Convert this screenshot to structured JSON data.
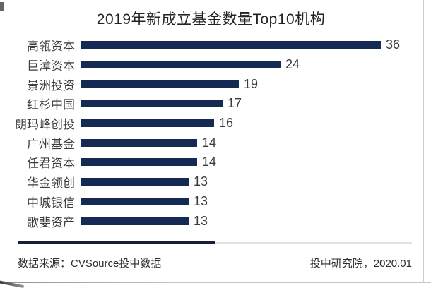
{
  "title": "2019年新成立基金数量Top10机构",
  "chart_data": {
    "type": "bar",
    "orientation": "horizontal",
    "title": "2019年新成立基金数量Top10机构",
    "categories": [
      "高瓴资本",
      "巨漳资本",
      "景洲投资",
      "红杉中国",
      "朗玛峰创投",
      "广州基金",
      "任君资本",
      "华金领创",
      "中城银信",
      "歌斐资产"
    ],
    "values": [
      36,
      24,
      19,
      17,
      16,
      14,
      14,
      13,
      13,
      13
    ],
    "xlabel": "",
    "ylabel": "",
    "xlim": [
      0,
      40
    ],
    "value_labels_shown": true,
    "legend": "none",
    "grid": "off"
  },
  "colors": {
    "bar": "#152a52",
    "divider_dark": "#171f33",
    "divider_light": "#e3e3e3",
    "text": "#3d3d3d",
    "title_text": "#232323"
  },
  "footer": {
    "source": "数据来源：CVSource投中数据",
    "credit": "投中研究院，2020.01"
  }
}
